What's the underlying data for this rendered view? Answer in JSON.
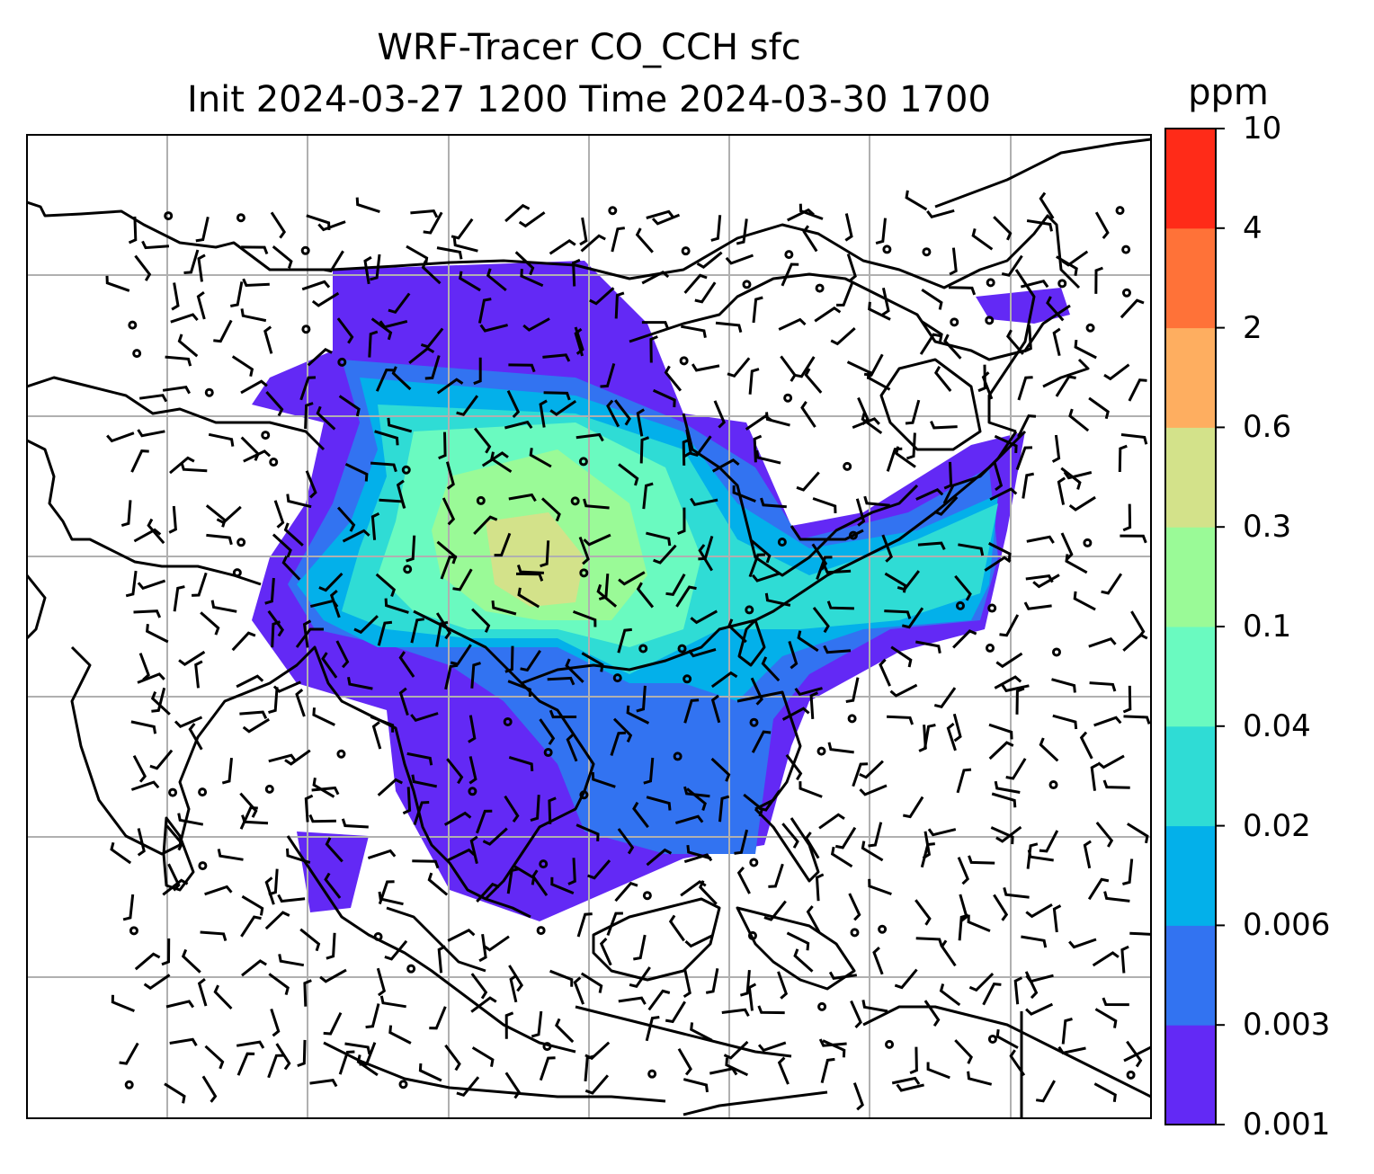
{
  "title": {
    "line1": "WRF-Tracer CO_CCH sfc",
    "line2": "Init 2024-03-27 1200 Time 2024-03-30 1700"
  },
  "colorbar": {
    "unit": "ppm",
    "levels": [
      "0.001",
      "0.003",
      "0.006",
      "0.02",
      "0.04",
      "0.1",
      "0.3",
      "0.6",
      "2",
      "4",
      "10"
    ],
    "colors": [
      "#6329f5",
      "#3273f1",
      "#03b0ea",
      "#2fdcd5",
      "#6afac0",
      "#9afa97",
      "#d3e28a",
      "#feae60",
      "#ff7238",
      "#ff2b18"
    ]
  },
  "map": {
    "graticule": true,
    "layers": [
      "coastlines",
      "country-borders",
      "tracer-concentration",
      "wind-barbs"
    ]
  }
}
